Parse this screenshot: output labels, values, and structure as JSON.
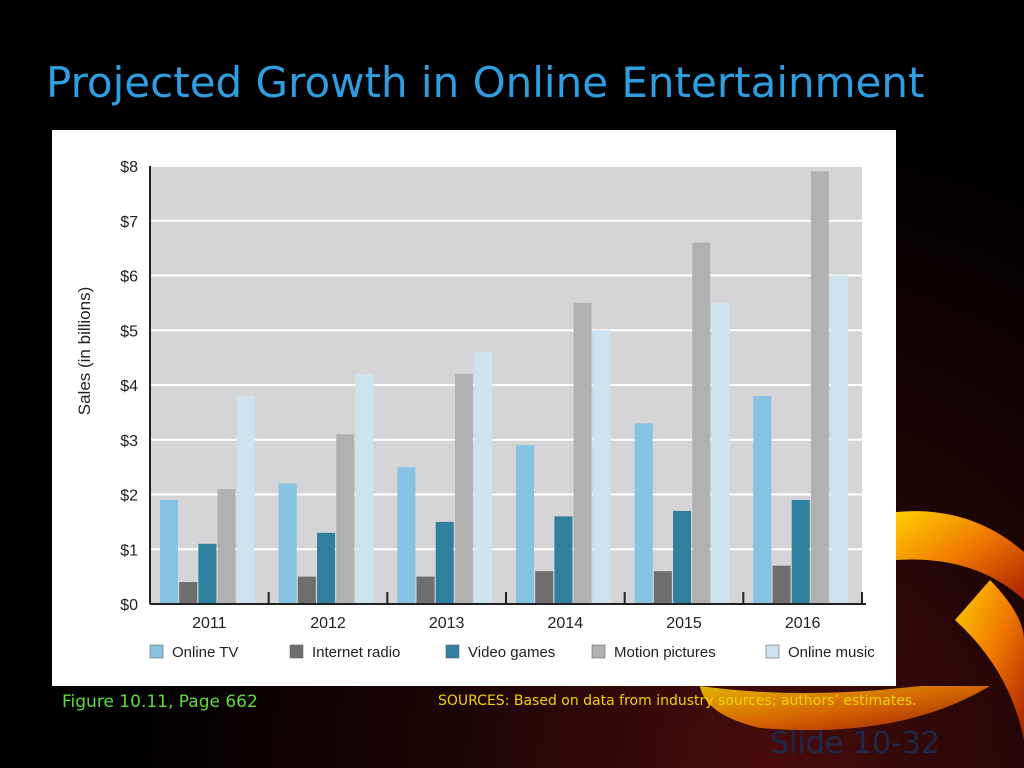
{
  "slide": {
    "title": "Projected Growth in Online Entertainment",
    "figure_caption": "Figure 10.11, Page 662",
    "sources": "SOURCES: Based on data from industry sources; authors’ estimates.",
    "slide_number": "Slide 10-32"
  },
  "chart_data": {
    "type": "bar",
    "title": "",
    "ylabel": "Sales (in billions)",
    "xlabel": "",
    "categories": [
      "2011",
      "2012",
      "2013",
      "2014",
      "2015",
      "2016"
    ],
    "ylim": [
      0,
      8
    ],
    "yticks": [
      "$0",
      "$1",
      "$2",
      "$3",
      "$4",
      "$5",
      "$6",
      "$7",
      "$8"
    ],
    "grid": true,
    "legend_position": "bottom",
    "series": [
      {
        "name": "Online TV",
        "color": "#86c2e2",
        "values": [
          1.9,
          2.2,
          2.5,
          2.9,
          3.3,
          3.8
        ]
      },
      {
        "name": "Internet radio",
        "color": "#6e6e6e",
        "values": [
          0.4,
          0.5,
          0.5,
          0.6,
          0.6,
          0.7
        ]
      },
      {
        "name": "Video games",
        "color": "#317f9e",
        "values": [
          1.1,
          1.3,
          1.5,
          1.6,
          1.7,
          1.9
        ]
      },
      {
        "name": "Motion pictures",
        "color": "#b1b1b1",
        "values": [
          2.1,
          3.1,
          4.2,
          5.5,
          6.6,
          7.9
        ]
      },
      {
        "name": "Online music",
        "color": "#cde4f0",
        "values": [
          3.8,
          4.2,
          4.6,
          5.0,
          5.5,
          6.0
        ]
      }
    ]
  }
}
